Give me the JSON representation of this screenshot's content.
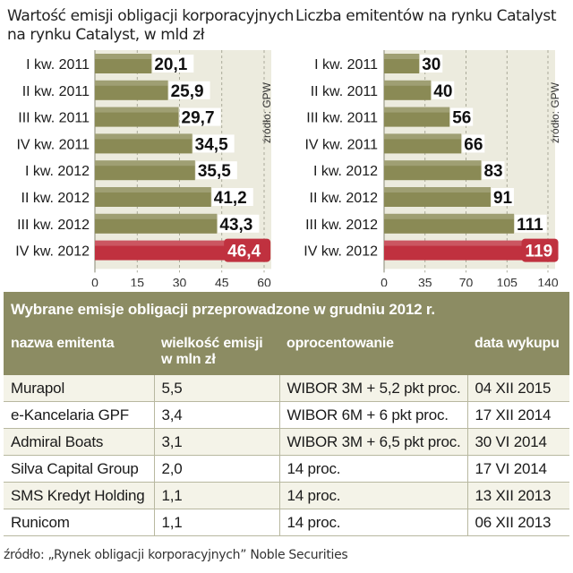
{
  "chart_data": [
    {
      "type": "bar",
      "orientation": "horizontal",
      "title": "Wartość emisji obligacji korporacyjnych na rynku Catalyst, w mld zł",
      "categories": [
        "I kw. 2011",
        "II kw. 2011",
        "III kw. 2011",
        "IV kw. 2011",
        "I kw. 2012",
        "II kw. 2012",
        "III kw. 2012",
        "IV kw. 2012"
      ],
      "values": [
        20.1,
        25.9,
        29.7,
        34.5,
        35.5,
        41.2,
        43.3,
        46.4
      ],
      "value_labels": [
        "20,1",
        "25,9",
        "29,7",
        "34,5",
        "35,5",
        "41,2",
        "43,3",
        "46,4"
      ],
      "xlim": [
        0,
        60
      ],
      "ticks": [
        0,
        15,
        30,
        45,
        60
      ],
      "source_note": "źródło: GPW",
      "highlight_index": 7,
      "colors": {
        "bar": "#8a8a55",
        "highlight": "#c0313f",
        "panel": "#ecebde"
      }
    },
    {
      "type": "bar",
      "orientation": "horizontal",
      "title": "Liczba emitentów na rynku Catalyst",
      "categories": [
        "I kw. 2011",
        "II kw. 2011",
        "III kw. 2011",
        "IV kw. 2011",
        "I kw. 2012",
        "II kw. 2012",
        "III kw. 2012",
        "IV kw. 2012"
      ],
      "values": [
        30,
        40,
        56,
        66,
        83,
        91,
        111,
        119
      ],
      "value_labels": [
        "30",
        "40",
        "56",
        "66",
        "83",
        "91",
        "111",
        "119"
      ],
      "xlim": [
        0,
        140
      ],
      "ticks": [
        0,
        35,
        70,
        105,
        140
      ],
      "source_note": "źródło: GPW",
      "highlight_index": 7,
      "colors": {
        "bar": "#8a8a55",
        "highlight": "#c0313f",
        "panel": "#ecebde"
      }
    }
  ],
  "table": {
    "title": "Wybrane emisje obligacji przeprowadzone w grudniu 2012 r.",
    "headers": [
      "nazwa emitenta",
      "wielkość emisji\nw mln zł",
      "oprocentowanie",
      "data wykupu"
    ],
    "rows": [
      [
        "Murapol",
        "5,5",
        "WIBOR 3M + 5,2 pkt proc.",
        "04 XII 2015"
      ],
      [
        "e-Kancelaria GPF",
        "3,4",
        "WIBOR 6M + 6 pkt proc.",
        "17 XII 2014"
      ],
      [
        "Admiral Boats",
        "3,1",
        "WIBOR 3M + 6,5 pkt proc.",
        "30 VI 2014"
      ],
      [
        "Silva Capital Group",
        "2,0",
        "14 proc.",
        "17 VI 2014"
      ],
      [
        "SMS Kredyt Holding",
        "1,1",
        "14 proc.",
        "13 XII 2013"
      ],
      [
        "Runicom",
        "1,1",
        "14 proc.",
        "06 XII 2013"
      ]
    ]
  },
  "footer_source": "źródło: „Rynek obligacji korporacyjnych” Noble Securities"
}
